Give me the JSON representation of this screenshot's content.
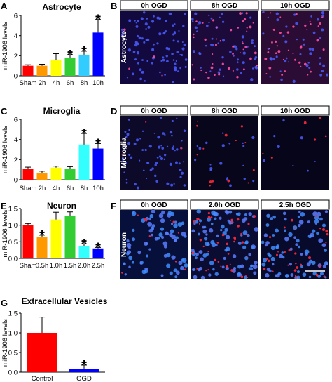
{
  "panels": {
    "A": "A",
    "B": "B",
    "C": "C",
    "D": "D",
    "E": "E",
    "F": "F",
    "G": "G"
  },
  "chart_data": [
    {
      "id": "A",
      "type": "bar",
      "title": "Astrocyte",
      "ylabel": "miR-1906 levels",
      "ylim": [
        0,
        6
      ],
      "yticks": [
        0,
        2,
        4,
        6
      ],
      "categories": [
        "Sham",
        "2h",
        "4h",
        "6h",
        "8h",
        "10h"
      ],
      "values": [
        1.0,
        1.0,
        1.6,
        1.8,
        2.1,
        4.3
      ],
      "errors": [
        0.1,
        0.15,
        0.6,
        0.3,
        0.35,
        1.3
      ],
      "significant": [
        false,
        false,
        false,
        true,
        true,
        true
      ],
      "colors": [
        "#ff0000",
        "#ff9900",
        "#ffff00",
        "#33cc33",
        "#33ccff",
        "#0000ff"
      ]
    },
    {
      "id": "C",
      "type": "bar",
      "title": "Microglia",
      "ylabel": "miR-1906 levels",
      "ylim": [
        0,
        6
      ],
      "yticks": [
        0,
        2,
        4,
        6
      ],
      "categories": [
        "Sham",
        "2h",
        "4h",
        "6h",
        "8h",
        "10h"
      ],
      "values": [
        1.1,
        0.7,
        1.2,
        1.1,
        3.5,
        3.1
      ],
      "errors": [
        0.15,
        0.15,
        0.15,
        0.2,
        1.1,
        0.5
      ],
      "significant": [
        false,
        false,
        false,
        false,
        true,
        true
      ],
      "colors": [
        "#ff0000",
        "#ff9900",
        "#ffff00",
        "#33cc33",
        "#33ffff",
        "#0000ff"
      ]
    },
    {
      "id": "E",
      "type": "bar",
      "title": "Neuron",
      "ylabel": "miR-1906 levels",
      "ylim": [
        0,
        1.5
      ],
      "yticks": [
        0.0,
        0.5,
        1.0,
        1.5
      ],
      "tick_labels": [
        "0.0",
        "0.5",
        "1.0",
        "1.5"
      ],
      "categories": [
        "Sham",
        "0.5h",
        "1.0h",
        "1.5h",
        "2.0h",
        "2.5h"
      ],
      "values": [
        1.0,
        0.65,
        1.17,
        1.28,
        0.38,
        0.3
      ],
      "errors": [
        0.05,
        0.05,
        0.22,
        0.12,
        0.06,
        0.03
      ],
      "significant": [
        false,
        true,
        false,
        false,
        true,
        true
      ],
      "colors": [
        "#ff0000",
        "#ff9900",
        "#ffff00",
        "#33cc33",
        "#33ffff",
        "#0000ff"
      ]
    },
    {
      "id": "G",
      "type": "bar",
      "title": "Extracellular Vesicles",
      "ylabel": "miR-1906 levels",
      "ylim": [
        0,
        1.5
      ],
      "yticks": [
        0.0,
        0.5,
        1.0,
        1.5
      ],
      "tick_labels": [
        "0.0",
        "0.5",
        "1.0",
        "1.5"
      ],
      "categories": [
        "Control",
        "OGD"
      ],
      "values": [
        1.0,
        0.08
      ],
      "errors": [
        0.4,
        0.1
      ],
      "significant": [
        false,
        true
      ],
      "colors": [
        "#ff0000",
        "#0000ff"
      ]
    }
  ],
  "micrographs": [
    {
      "id": "B",
      "side_label": "Astrocyte",
      "columns": [
        "0h OGD",
        "8h OGD",
        "10h OGD"
      ],
      "bg": [
        "#120a3e",
        "#1c0b3a",
        "#2a0c34"
      ]
    },
    {
      "id": "D",
      "side_label": "Microglia",
      "columns": [
        "0h OGD",
        "8h OGD",
        "10h OGD"
      ],
      "bg": [
        "#0c0a28",
        "#08061a",
        "#07051a"
      ]
    },
    {
      "id": "F",
      "side_label": "Neuron",
      "columns": [
        "0h OGD",
        "2.0h OGD",
        "2.5h OGD"
      ],
      "bg": [
        "#06103a",
        "#0a0c32",
        "#080a2c"
      ]
    }
  ]
}
